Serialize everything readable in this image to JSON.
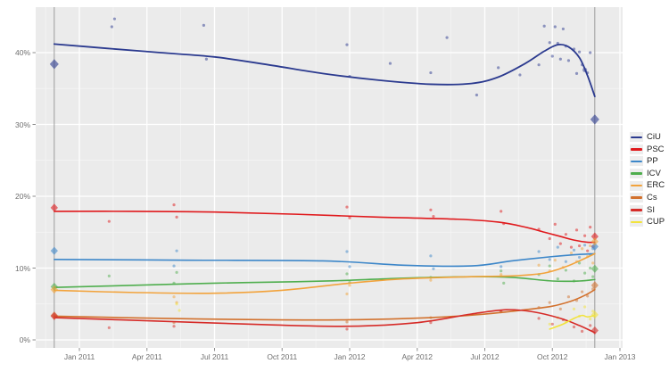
{
  "chart_data": {
    "type": "scatter",
    "title": "",
    "x_axis": {
      "range": [
        2010.84,
        2013.01
      ],
      "ticks": [
        {
          "t": 2011.0,
          "label": "Jan 2011"
        },
        {
          "t": 2011.25,
          "label": "Apr 2011"
        },
        {
          "t": 2011.5,
          "label": "Jul 2011"
        },
        {
          "t": 2011.75,
          "label": "Oct 2011"
        },
        {
          "t": 2012.0,
          "label": "Jan 2012"
        },
        {
          "t": 2012.25,
          "label": "Apr 2012"
        },
        {
          "t": 2012.5,
          "label": "Jul 2012"
        },
        {
          "t": 2012.75,
          "label": "Oct 2012"
        },
        {
          "t": 2013.0,
          "label": "Jan 2013"
        }
      ]
    },
    "y_axis": {
      "unit": "%",
      "range": [
        -1,
        46.3
      ],
      "ticks": [
        {
          "p": 0,
          "label": "0%"
        },
        {
          "p": 10,
          "label": "10%"
        },
        {
          "p": 20,
          "label": "20%"
        },
        {
          "p": 30,
          "label": "30%"
        },
        {
          "p": 40,
          "label": "40%"
        }
      ],
      "minor": [
        5,
        15,
        25,
        35
      ]
    },
    "election_lines": [
      {
        "t": 2010.907
      },
      {
        "t": 2012.907
      }
    ],
    "series": [
      {
        "id": "ciu",
        "label": "CiU",
        "color": "#2b3a8f",
        "result_2010": 38.4,
        "result_2012": 30.7,
        "line": [
          [
            2010.907,
            41.2
          ],
          [
            2011.1,
            40.6
          ],
          [
            2011.3,
            40.0
          ],
          [
            2011.5,
            39.4
          ],
          [
            2011.7,
            38.3
          ],
          [
            2011.9,
            37.1
          ],
          [
            2012.1,
            36.2
          ],
          [
            2012.3,
            35.6
          ],
          [
            2012.45,
            35.7
          ],
          [
            2012.55,
            36.6
          ],
          [
            2012.65,
            38.5
          ],
          [
            2012.72,
            40.2
          ],
          [
            2012.77,
            41.1
          ],
          [
            2012.81,
            40.8
          ],
          [
            2012.85,
            39.3
          ],
          [
            2012.88,
            36.8
          ],
          [
            2012.907,
            33.9
          ]
        ],
        "points": [
          [
            2011.12,
            43.6
          ],
          [
            2011.13,
            44.7
          ],
          [
            2011.46,
            43.8
          ],
          [
            2011.47,
            39.1
          ],
          [
            2011.99,
            41.1
          ],
          [
            2012.0,
            36.7
          ],
          [
            2012.15,
            38.5
          ],
          [
            2012.3,
            37.2
          ],
          [
            2012.36,
            42.1
          ],
          [
            2012.47,
            34.1
          ],
          [
            2012.55,
            37.9
          ],
          [
            2012.63,
            36.9
          ],
          [
            2012.7,
            38.3
          ],
          [
            2012.72,
            43.7
          ],
          [
            2012.74,
            41.4
          ],
          [
            2012.75,
            39.5
          ],
          [
            2012.76,
            43.6
          ],
          [
            2012.77,
            41.3
          ],
          [
            2012.78,
            39.1
          ],
          [
            2012.79,
            43.3
          ],
          [
            2012.8,
            40.9
          ],
          [
            2012.81,
            38.9
          ],
          [
            2012.83,
            40.5
          ],
          [
            2012.84,
            37.1
          ],
          [
            2012.85,
            40.1
          ],
          [
            2012.86,
            38.3
          ],
          [
            2012.87,
            37.6,
            2.6
          ],
          [
            2012.88,
            37.2
          ],
          [
            2012.89,
            40.0
          ]
        ]
      },
      {
        "id": "psc",
        "label": "PSC",
        "color": "#e0191c",
        "result_2010": 18.4,
        "result_2012": 14.4,
        "line": [
          [
            2010.907,
            17.9
          ],
          [
            2011.2,
            17.9
          ],
          [
            2011.5,
            17.8
          ],
          [
            2011.8,
            17.5
          ],
          [
            2012.1,
            17.1
          ],
          [
            2012.4,
            16.8
          ],
          [
            2012.55,
            16.4
          ],
          [
            2012.65,
            15.7
          ],
          [
            2012.72,
            15.0
          ],
          [
            2012.78,
            14.4
          ],
          [
            2012.83,
            13.9
          ],
          [
            2012.88,
            13.6
          ],
          [
            2012.907,
            13.6
          ]
        ],
        "points": [
          [
            2011.11,
            16.5
          ],
          [
            2011.35,
            18.8
          ],
          [
            2011.36,
            17.1
          ],
          [
            2011.99,
            18.5
          ],
          [
            2012.0,
            17.0
          ],
          [
            2012.3,
            18.1
          ],
          [
            2012.31,
            17.2
          ],
          [
            2012.56,
            17.9
          ],
          [
            2012.57,
            16.2
          ],
          [
            2012.7,
            15.4
          ],
          [
            2012.74,
            14.1
          ],
          [
            2012.76,
            16.1
          ],
          [
            2012.78,
            13.4
          ],
          [
            2012.8,
            14.7
          ],
          [
            2012.82,
            12.9
          ],
          [
            2012.84,
            15.3
          ],
          [
            2012.85,
            13.1
          ],
          [
            2012.87,
            14.5
          ],
          [
            2012.88,
            12.4
          ],
          [
            2012.89,
            15.7
          ],
          [
            2012.9,
            13.0
          ]
        ]
      },
      {
        "id": "pp",
        "label": "PP",
        "color": "#3d87c9",
        "result_2010": 12.4,
        "result_2012": 13.0,
        "line": [
          [
            2010.907,
            11.2
          ],
          [
            2011.4,
            11.1
          ],
          [
            2011.9,
            11.0
          ],
          [
            2012.2,
            10.4
          ],
          [
            2012.45,
            10.3
          ],
          [
            2012.6,
            11.0
          ],
          [
            2012.75,
            11.6
          ],
          [
            2012.85,
            11.9
          ],
          [
            2012.907,
            12.0
          ]
        ],
        "points": [
          [
            2011.35,
            10.3
          ],
          [
            2011.36,
            12.4
          ],
          [
            2011.99,
            12.3
          ],
          [
            2012.0,
            10.2
          ],
          [
            2012.3,
            11.7
          ],
          [
            2012.31,
            9.9
          ],
          [
            2012.56,
            10.2
          ],
          [
            2012.7,
            12.3
          ],
          [
            2012.74,
            11.2
          ],
          [
            2012.77,
            12.9
          ],
          [
            2012.8,
            10.9
          ],
          [
            2012.83,
            12.5
          ],
          [
            2012.85,
            11.5
          ],
          [
            2012.87,
            13.2
          ],
          [
            2012.89,
            11.9
          ],
          [
            2012.9,
            12.7
          ]
        ]
      },
      {
        "id": "icv",
        "label": "ICV",
        "color": "#4fae4e",
        "result_2010": 7.4,
        "result_2012": 9.9,
        "line": [
          [
            2010.907,
            7.3
          ],
          [
            2011.2,
            7.6
          ],
          [
            2011.5,
            7.9
          ],
          [
            2011.8,
            8.1
          ],
          [
            2012.0,
            8.3
          ],
          [
            2012.2,
            8.6
          ],
          [
            2012.45,
            8.8
          ],
          [
            2012.6,
            8.7
          ],
          [
            2012.75,
            8.2
          ],
          [
            2012.85,
            8.2
          ],
          [
            2012.907,
            8.4
          ]
        ],
        "points": [
          [
            2011.11,
            8.9
          ],
          [
            2011.35,
            7.9
          ],
          [
            2011.36,
            9.4
          ],
          [
            2011.99,
            9.2
          ],
          [
            2012.0,
            8.0
          ],
          [
            2012.3,
            8.7
          ],
          [
            2012.56,
            9.6
          ],
          [
            2012.57,
            7.9
          ],
          [
            2012.7,
            9.1
          ],
          [
            2012.74,
            10.3
          ],
          [
            2012.77,
            8.5
          ],
          [
            2012.8,
            9.7
          ],
          [
            2012.83,
            8.2
          ],
          [
            2012.85,
            10.7
          ],
          [
            2012.87,
            9.3
          ],
          [
            2012.89,
            10.0
          ],
          [
            2012.9,
            8.8
          ]
        ]
      },
      {
        "id": "erc",
        "label": "ERC",
        "color": "#f2a33c",
        "result_2010": 7.0,
        "result_2012": 13.7,
        "line": [
          [
            2010.907,
            6.9
          ],
          [
            2011.2,
            6.6
          ],
          [
            2011.5,
            6.5
          ],
          [
            2011.75,
            6.9
          ],
          [
            2012.0,
            7.9
          ],
          [
            2012.2,
            8.5
          ],
          [
            2012.45,
            8.8
          ],
          [
            2012.6,
            8.9
          ],
          [
            2012.72,
            9.3
          ],
          [
            2012.8,
            10.2
          ],
          [
            2012.85,
            11.0
          ],
          [
            2012.907,
            12.0
          ]
        ],
        "points": [
          [
            2011.35,
            6.0
          ],
          [
            2011.36,
            5.2
          ],
          [
            2011.99,
            6.4
          ],
          [
            2012.0,
            7.6
          ],
          [
            2012.3,
            8.3
          ],
          [
            2012.56,
            9.1
          ],
          [
            2012.7,
            10.4
          ],
          [
            2012.74,
            9.6
          ],
          [
            2012.76,
            11.1
          ],
          [
            2012.79,
            10.1
          ],
          [
            2012.82,
            12.1
          ],
          [
            2012.84,
            10.9
          ],
          [
            2012.86,
            12.7
          ],
          [
            2012.88,
            11.6
          ],
          [
            2012.89,
            13.1
          ],
          [
            2012.9,
            10.7
          ]
        ]
      },
      {
        "id": "cs",
        "label": "Cs",
        "color": "#d2712d",
        "result_2010": 3.4,
        "result_2012": 7.6,
        "line": [
          [
            2010.907,
            3.3
          ],
          [
            2011.3,
            3.0
          ],
          [
            2011.7,
            2.8
          ],
          [
            2012.0,
            2.8
          ],
          [
            2012.3,
            3.1
          ],
          [
            2012.5,
            3.6
          ],
          [
            2012.65,
            4.2
          ],
          [
            2012.75,
            4.7
          ],
          [
            2012.82,
            5.4
          ],
          [
            2012.87,
            6.2
          ],
          [
            2012.907,
            7.0
          ]
        ],
        "points": [
          [
            2011.35,
            2.4
          ],
          [
            2011.99,
            2.5
          ],
          [
            2012.3,
            3.1
          ],
          [
            2012.56,
            3.9
          ],
          [
            2012.7,
            4.5
          ],
          [
            2012.74,
            5.2
          ],
          [
            2012.78,
            4.3
          ],
          [
            2012.81,
            6.0
          ],
          [
            2012.84,
            5.5
          ],
          [
            2012.86,
            6.7
          ],
          [
            2012.88,
            6.1
          ],
          [
            2012.9,
            7.1
          ]
        ]
      },
      {
        "id": "si",
        "label": "SI",
        "color": "#d62b28",
        "result_2010": 3.3,
        "result_2012": 1.3,
        "line": [
          [
            2010.907,
            3.1
          ],
          [
            2011.3,
            2.6
          ],
          [
            2011.7,
            2.1
          ],
          [
            2012.0,
            1.9
          ],
          [
            2012.25,
            2.4
          ],
          [
            2012.45,
            3.6
          ],
          [
            2012.58,
            4.2
          ],
          [
            2012.68,
            3.9
          ],
          [
            2012.78,
            3.0
          ],
          [
            2012.85,
            2.0
          ],
          [
            2012.907,
            1.0
          ]
        ],
        "points": [
          [
            2011.11,
            1.7
          ],
          [
            2011.35,
            1.9
          ],
          [
            2011.99,
            1.5
          ],
          [
            2012.3,
            2.4
          ],
          [
            2012.56,
            4.0
          ],
          [
            2012.7,
            3.0
          ],
          [
            2012.75,
            2.2
          ],
          [
            2012.79,
            2.8
          ],
          [
            2012.83,
            1.8
          ],
          [
            2012.86,
            1.2
          ],
          [
            2012.89,
            2.0
          ]
        ]
      },
      {
        "id": "cup",
        "label": "CUP",
        "color": "#f2e33c",
        "result_2010": null,
        "result_2012": 3.5,
        "line": [
          [
            2012.74,
            1.5
          ],
          [
            2012.79,
            2.2
          ],
          [
            2012.83,
            3.0
          ],
          [
            2012.86,
            3.4
          ],
          [
            2012.88,
            3.2
          ],
          [
            2012.907,
            3.4
          ]
        ],
        "points": [
          [
            2011.36,
            5.0
          ],
          [
            2011.37,
            4.1
          ],
          [
            2012.74,
            2.2
          ],
          [
            2012.77,
            3.1
          ],
          [
            2012.8,
            2.5
          ],
          [
            2012.83,
            4.3
          ],
          [
            2012.85,
            3.3
          ],
          [
            2012.87,
            4.6
          ],
          [
            2012.89,
            2.9
          ],
          [
            2012.9,
            4.0
          ]
        ]
      }
    ],
    "legend_position": "right",
    "grid": true
  },
  "colors": {
    "page_background": "#ffffff",
    "plot_background": "#ebebeb",
    "grid_major": "#ffffff",
    "grid_minor": "#f5f5f5",
    "election_line": "#9b9b9b",
    "tick_mark": "#8c8c8c",
    "axis_text": "#6e6e6e",
    "legend_text": "#1c1c1c",
    "legend_key_background": "#ededed"
  }
}
